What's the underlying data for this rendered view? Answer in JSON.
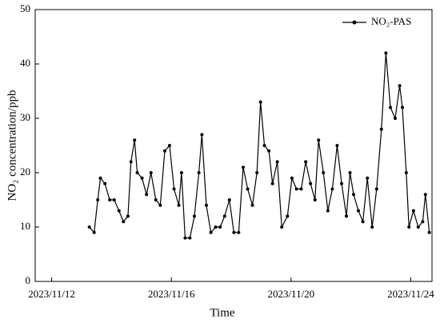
{
  "chart_data": {
    "type": "line",
    "x_label": "Time",
    "y_label": "NO₂ concentration/ppb",
    "xlim": [
      11.45,
      24.71
    ],
    "xticks": [
      {
        "value": 12,
        "label": "2023/11/12"
      },
      {
        "value": 16,
        "label": "2023/11/16"
      },
      {
        "value": 20,
        "label": "2023/11/20"
      },
      {
        "value": 24,
        "label": "2023/11/24"
      }
    ],
    "ylim": [
      0,
      50
    ],
    "yticks": [
      0,
      10,
      20,
      30,
      40,
      50
    ],
    "legend": "upper right",
    "series": [
      {
        "name": "NO₂-PAS",
        "color": "#000000",
        "x": [
          13.26,
          13.42,
          13.54,
          13.63,
          13.78,
          13.94,
          14.09,
          14.25,
          14.4,
          14.55,
          14.65,
          14.77,
          14.86,
          15.02,
          15.17,
          15.32,
          15.48,
          15.63,
          15.78,
          15.94,
          16.09,
          16.25,
          16.34,
          16.46,
          16.62,
          16.77,
          16.92,
          17.02,
          17.17,
          17.32,
          17.48,
          17.63,
          17.78,
          17.94,
          18.09,
          18.25,
          18.4,
          18.55,
          18.71,
          18.86,
          18.98,
          19.11,
          19.26,
          19.38,
          19.54,
          19.69,
          19.88,
          20.03,
          20.18,
          20.34,
          20.49,
          20.65,
          20.8,
          20.92,
          21.08,
          21.23,
          21.38,
          21.54,
          21.69,
          21.85,
          21.97,
          22.09,
          22.25,
          22.4,
          22.55,
          22.71,
          22.86,
          23.02,
          23.17,
          23.32,
          23.48,
          23.63,
          23.72,
          23.85,
          23.94,
          24.09,
          24.25,
          24.4,
          24.49,
          24.62
        ],
        "values": [
          10,
          9,
          15,
          19,
          18,
          15,
          15,
          13,
          11,
          12,
          22,
          26,
          20,
          19,
          16,
          20,
          15,
          14,
          24,
          25,
          17,
          14,
          20,
          8,
          8,
          12,
          20,
          27,
          14,
          9,
          10,
          10,
          12,
          15,
          9,
          9,
          21,
          17,
          14,
          20,
          33,
          25,
          24,
          18,
          22,
          10,
          12,
          19,
          17,
          17,
          22,
          18,
          15,
          26,
          20,
          13,
          17,
          25,
          18,
          12,
          20,
          16,
          13,
          11,
          19,
          10,
          17,
          28,
          42,
          32,
          30,
          36,
          32,
          20,
          10,
          13,
          10,
          11,
          16,
          9
        ]
      }
    ]
  }
}
